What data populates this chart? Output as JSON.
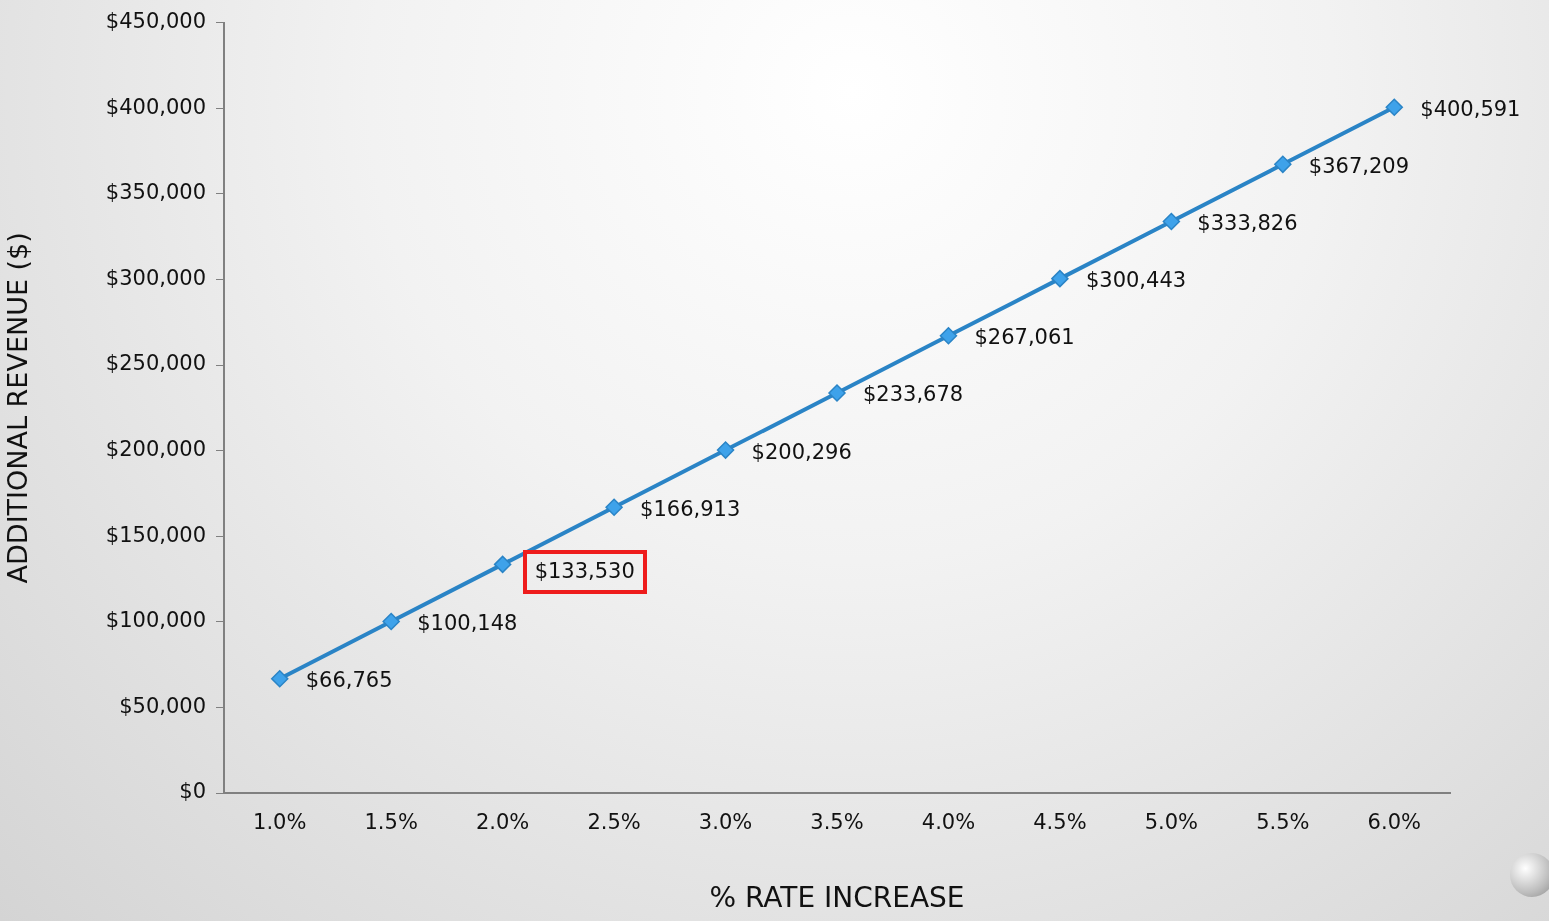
{
  "chart_data": {
    "type": "line",
    "xlabel": "% RATE INCREASE",
    "ylabel": "ADDITIONAL REVENUE ($)",
    "categories": [
      "1.0%",
      "1.5%",
      "2.0%",
      "2.5%",
      "3.0%",
      "3.5%",
      "4.0%",
      "4.5%",
      "5.0%",
      "5.5%",
      "6.0%"
    ],
    "series": [
      {
        "color": "#2a84c6",
        "values": [
          66765,
          100148,
          133530,
          166913,
          200296,
          233678,
          267061,
          300443,
          333826,
          367209,
          400591
        ]
      }
    ],
    "value_labels": [
      "$66,765",
      "$100,148",
      null,
      "$166,913",
      "$200,296",
      "$233,678",
      "$267,061",
      "$300,443",
      "$333,826",
      "$367,209",
      "$400,591"
    ],
    "annotations": [
      {
        "text": "$133,530",
        "x": "2.0%",
        "y": 133530
      }
    ],
    "ylim": [
      0,
      450000
    ],
    "yticks": [
      {
        "value": 0,
        "label": "$0"
      },
      {
        "value": 50000,
        "label": "$50,000"
      },
      {
        "value": 100000,
        "label": "$100,000"
      },
      {
        "value": 150000,
        "label": "$150,000"
      },
      {
        "value": 200000,
        "label": "$200,000"
      },
      {
        "value": 250000,
        "label": "$250,000"
      },
      {
        "value": 300000,
        "label": "$300,000"
      },
      {
        "value": 350000,
        "label": "$350,000"
      },
      {
        "value": 400000,
        "label": "$400,000"
      },
      {
        "value": 450000,
        "label": "$450,000"
      }
    ],
    "marker": "diamond",
    "legend": false
  }
}
